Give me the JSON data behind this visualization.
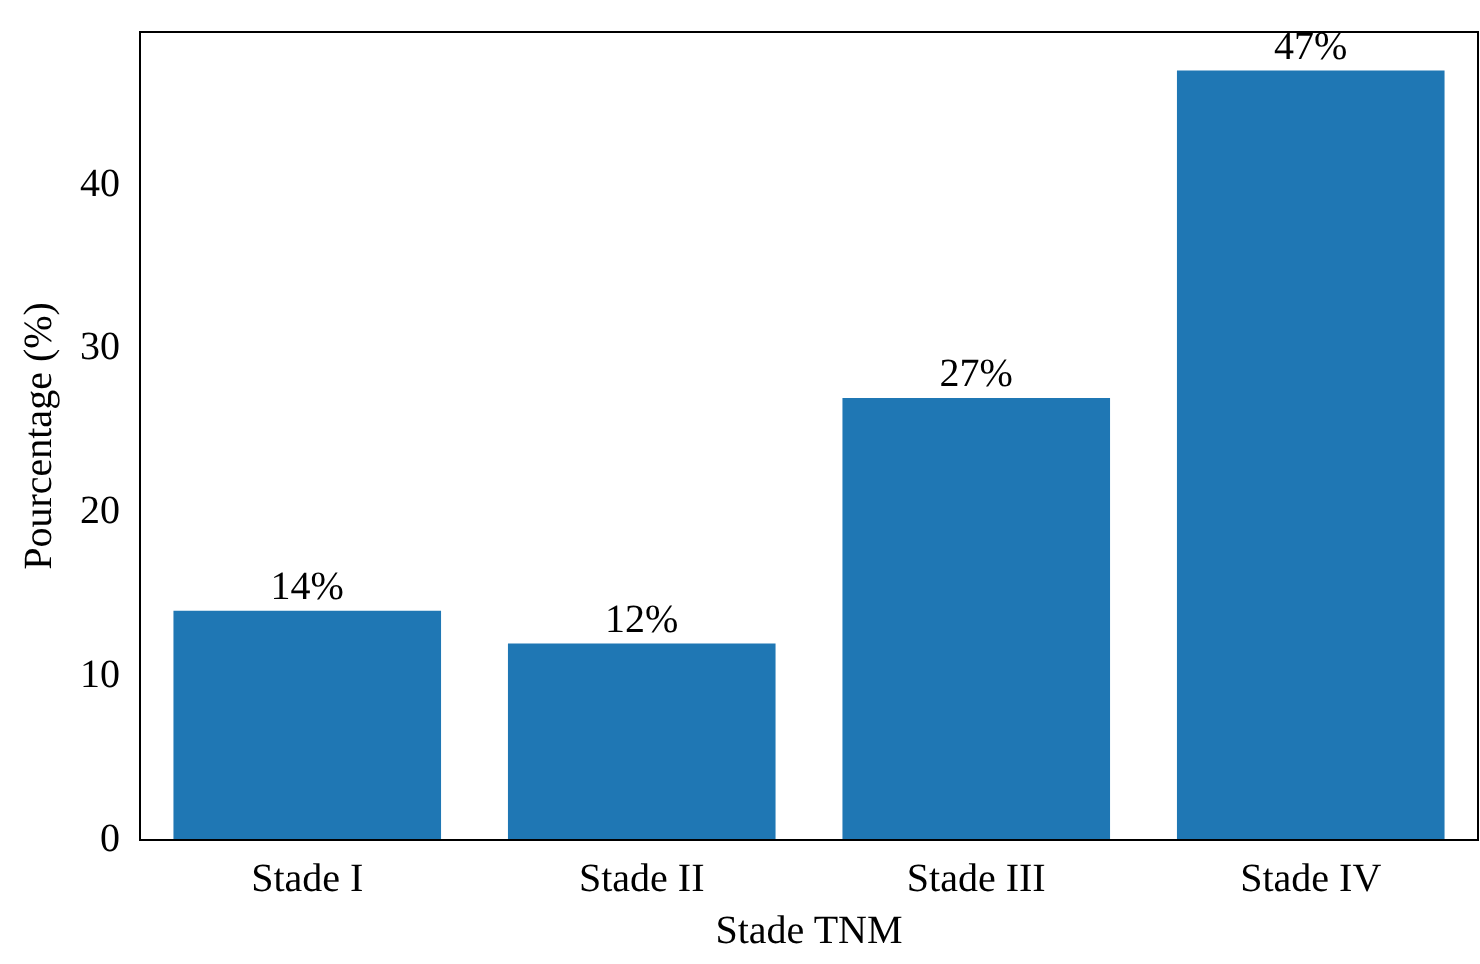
{
  "chart_data": {
    "type": "bar",
    "xlabel": "Stade TNM",
    "ylabel": "Pourcentage (%)",
    "categories": [
      "Stade I",
      "Stade II",
      "Stade III",
      "Stade IV"
    ],
    "values": [
      14,
      12,
      27,
      47
    ],
    "value_labels": [
      "14%",
      "12%",
      "27%",
      "47%"
    ],
    "color": "#1f77b4",
    "ylim": [
      0,
      49.35
    ],
    "yticks": [
      0,
      10,
      20,
      30,
      40
    ],
    "grid": false,
    "legend": false
  }
}
